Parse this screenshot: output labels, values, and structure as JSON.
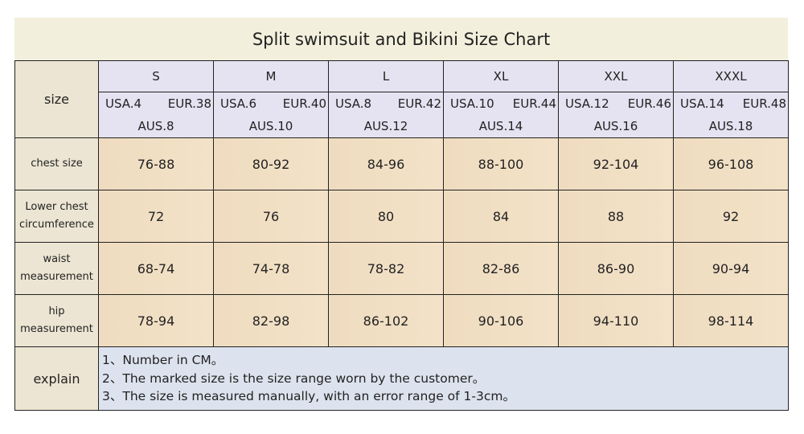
{
  "title": "Split swimsuit and Bikini Size Chart",
  "size_label": "size",
  "sizes": [
    {
      "name": "S",
      "usa": "USA.4",
      "eur": "EUR.38",
      "aus": "AUS.8"
    },
    {
      "name": "M",
      "usa": "USA.6",
      "eur": "EUR.40",
      "aus": "AUS.10"
    },
    {
      "name": "L",
      "usa": "USA.8",
      "eur": "EUR.42",
      "aus": "AUS.12"
    },
    {
      "name": "XL",
      "usa": "USA.10",
      "eur": "EUR.44",
      "aus": "AUS.14"
    },
    {
      "name": "XXL",
      "usa": "USA.12",
      "eur": "EUR.46",
      "aus": "AUS.16"
    },
    {
      "name": "XXXL",
      "usa": "USA.14",
      "eur": "EUR.48",
      "aus": "AUS.18"
    }
  ],
  "rows": [
    {
      "label": "chest size",
      "values": [
        "76-88",
        "80-92",
        "84-96",
        "88-100",
        "92-104",
        "96-108"
      ]
    },
    {
      "label": "Lower chest circumference",
      "values": [
        "72",
        "76",
        "80",
        "84",
        "88",
        "92"
      ]
    },
    {
      "label": "waist measurement",
      "values": [
        "68-74",
        "74-78",
        "78-82",
        "82-86",
        "86-90",
        "90-94"
      ]
    },
    {
      "label": "hip measurement",
      "values": [
        "78-94",
        "82-98",
        "86-102",
        "90-106",
        "94-110",
        "98-114"
      ]
    }
  ],
  "explain": {
    "label": "explain",
    "lines": [
      "1、Number in CM。",
      "2、The marked size is the size range worn by the customer。",
      "3、The size is measured manually, with an error range of 1-3cm。"
    ]
  }
}
